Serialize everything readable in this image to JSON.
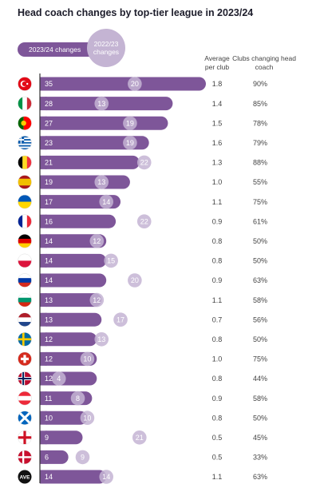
{
  "title": "Head coach changes by top-tier league in 2023/24",
  "legend": {
    "current_label": "2023/24 changes",
    "previous_label": "2022/23 changes"
  },
  "columns": {
    "avg_header": "Average per club",
    "clubs_header": "Clubs changing head coach"
  },
  "colors": {
    "bar": "#7e5699",
    "previous_circle": "#c4b4d3",
    "axis": "#333333",
    "text": "#444444"
  },
  "chart_data": {
    "type": "bar",
    "orientation": "horizontal",
    "title": "Head coach changes by top-tier league in 2023/24",
    "categories": [
      "turkey-flag",
      "italy-flag",
      "portugal-flag",
      "greece-flag",
      "belgium-flag",
      "spain-flag",
      "ukraine-flag",
      "france-flag",
      "germany-flag",
      "poland-flag",
      "russia-flag",
      "bulgaria-flag",
      "netherlands-flag",
      "sweden-flag",
      "switzerland-flag",
      "norway-flag",
      "austria-flag",
      "scotland-flag",
      "england-flag",
      "denmark-flag",
      "AVE"
    ],
    "series": [
      {
        "name": "2023/24 changes",
        "values": [
          35,
          28,
          27,
          23,
          21,
          19,
          17,
          16,
          14,
          14,
          14,
          13,
          13,
          12,
          12,
          12,
          11,
          10,
          9,
          6,
          14
        ]
      },
      {
        "name": "2022/23 changes",
        "values": [
          20,
          13,
          19,
          19,
          22,
          13,
          14,
          22,
          12,
          15,
          20,
          12,
          17,
          13,
          10,
          4,
          8,
          10,
          21,
          9,
          14
        ]
      }
    ],
    "average_per_club": [
      "1.8",
      "1.4",
      "1.5",
      "1.6",
      "1.3",
      "1.0",
      "1.1",
      "0.9",
      "0.8",
      "0.8",
      "0.9",
      "1.1",
      "0.7",
      "0.8",
      "1.0",
      "0.8",
      "0.9",
      "0.8",
      "0.5",
      "0.5",
      "1.1"
    ],
    "clubs_changing_pct": [
      "90%",
      "85%",
      "78%",
      "79%",
      "88%",
      "55%",
      "75%",
      "61%",
      "50%",
      "50%",
      "63%",
      "58%",
      "56%",
      "50%",
      "75%",
      "44%",
      "58%",
      "50%",
      "45%",
      "33%",
      "63%"
    ],
    "xlim": [
      0,
      35
    ]
  }
}
